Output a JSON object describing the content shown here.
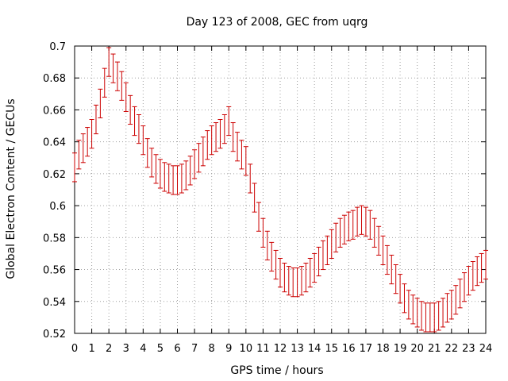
{
  "chart_data": {
    "type": "line",
    "title": "Day 123 of 2008, GEC from uqrg",
    "xlabel": "GPS time / hours",
    "ylabel": "Global Electron Content / GECUs",
    "xlim": [
      0,
      24
    ],
    "ylim": [
      0.52,
      0.7
    ],
    "xticks": [
      "0",
      "1",
      "2",
      "3",
      "4",
      "5",
      "6",
      "7",
      "8",
      "9",
      "10",
      "11",
      "12",
      "13",
      "14",
      "15",
      "16",
      "17",
      "18",
      "19",
      "20",
      "21",
      "22",
      "23",
      "24"
    ],
    "yticks": [
      "0.52",
      "0.54",
      "0.56",
      "0.58",
      "0.6",
      "0.62",
      "0.64",
      "0.66",
      "0.68",
      "0.7"
    ],
    "grid": true,
    "series_color": "#cc0000",
    "error": 0.009,
    "points": [
      [
        0.0,
        0.624
      ],
      [
        0.25,
        0.632
      ],
      [
        0.5,
        0.636
      ],
      [
        0.75,
        0.64
      ],
      [
        1.0,
        0.645
      ],
      [
        1.25,
        0.654
      ],
      [
        1.5,
        0.664
      ],
      [
        1.75,
        0.677
      ],
      [
        2.0,
        0.69
      ],
      [
        2.25,
        0.686
      ],
      [
        2.5,
        0.681
      ],
      [
        2.75,
        0.675
      ],
      [
        3.0,
        0.668
      ],
      [
        3.25,
        0.66
      ],
      [
        3.5,
        0.653
      ],
      [
        3.75,
        0.648
      ],
      [
        4.0,
        0.641
      ],
      [
        4.25,
        0.633
      ],
      [
        4.5,
        0.627
      ],
      [
        4.75,
        0.623
      ],
      [
        5.0,
        0.62
      ],
      [
        5.25,
        0.618
      ],
      [
        5.5,
        0.617
      ],
      [
        5.75,
        0.616
      ],
      [
        6.0,
        0.616
      ],
      [
        6.25,
        0.617
      ],
      [
        6.5,
        0.619
      ],
      [
        6.75,
        0.622
      ],
      [
        7.0,
        0.626
      ],
      [
        7.25,
        0.63
      ],
      [
        7.5,
        0.634
      ],
      [
        7.75,
        0.638
      ],
      [
        8.0,
        0.641
      ],
      [
        8.25,
        0.643
      ],
      [
        8.5,
        0.645
      ],
      [
        8.75,
        0.648
      ],
      [
        9.0,
        0.653
      ],
      [
        9.25,
        0.643
      ],
      [
        9.5,
        0.637
      ],
      [
        9.75,
        0.632
      ],
      [
        10.0,
        0.628
      ],
      [
        10.25,
        0.617
      ],
      [
        10.5,
        0.605
      ],
      [
        10.75,
        0.593
      ],
      [
        11.0,
        0.583
      ],
      [
        11.25,
        0.575
      ],
      [
        11.5,
        0.568
      ],
      [
        11.75,
        0.563
      ],
      [
        12.0,
        0.558
      ],
      [
        12.25,
        0.555
      ],
      [
        12.5,
        0.553
      ],
      [
        12.75,
        0.552
      ],
      [
        13.0,
        0.552
      ],
      [
        13.25,
        0.553
      ],
      [
        13.5,
        0.555
      ],
      [
        13.75,
        0.558
      ],
      [
        14.0,
        0.561
      ],
      [
        14.25,
        0.565
      ],
      [
        14.5,
        0.569
      ],
      [
        14.75,
        0.572
      ],
      [
        15.0,
        0.576
      ],
      [
        15.25,
        0.58
      ],
      [
        15.5,
        0.583
      ],
      [
        15.75,
        0.585
      ],
      [
        16.0,
        0.587
      ],
      [
        16.25,
        0.588
      ],
      [
        16.5,
        0.59
      ],
      [
        16.75,
        0.591
      ],
      [
        17.0,
        0.59
      ],
      [
        17.25,
        0.588
      ],
      [
        17.5,
        0.583
      ],
      [
        17.75,
        0.578
      ],
      [
        18.0,
        0.572
      ],
      [
        18.25,
        0.566
      ],
      [
        18.5,
        0.56
      ],
      [
        18.75,
        0.554
      ],
      [
        19.0,
        0.548
      ],
      [
        19.25,
        0.542
      ],
      [
        19.5,
        0.538
      ],
      [
        19.75,
        0.535
      ],
      [
        20.0,
        0.533
      ],
      [
        20.25,
        0.531
      ],
      [
        20.5,
        0.53
      ],
      [
        20.75,
        0.53
      ],
      [
        21.0,
        0.53
      ],
      [
        21.25,
        0.531
      ],
      [
        21.5,
        0.533
      ],
      [
        21.75,
        0.536
      ],
      [
        22.0,
        0.538
      ],
      [
        22.25,
        0.541
      ],
      [
        22.5,
        0.545
      ],
      [
        22.75,
        0.549
      ],
      [
        23.0,
        0.553
      ],
      [
        23.25,
        0.556
      ],
      [
        23.5,
        0.559
      ],
      [
        23.75,
        0.561
      ],
      [
        24.0,
        0.563
      ]
    ]
  }
}
